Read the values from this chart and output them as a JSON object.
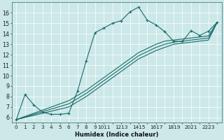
{
  "xlabel": "Humidex (Indice chaleur)",
  "bg_color": "#cce8e8",
  "line_color": "#1a6b6b",
  "xlim": [
    -0.5,
    23.5
  ],
  "ylim": [
    5.5,
    17.0
  ],
  "yticks": [
    6,
    7,
    8,
    9,
    10,
    11,
    12,
    13,
    14,
    15,
    16
  ],
  "xticks": [
    0,
    1,
    2,
    3,
    4,
    5,
    6,
    7,
    8,
    9,
    10,
    11,
    12,
    13,
    14,
    15,
    16,
    17,
    18,
    19,
    20,
    21,
    22,
    23
  ],
  "xtick_labels": [
    "0",
    "1",
    "2",
    "3",
    "4",
    "5",
    "6",
    "7",
    "8",
    "9",
    "1011",
    "",
    "12",
    "13",
    "14",
    "15",
    "16",
    "17",
    "18",
    "19",
    "20",
    "21",
    "2223",
    ""
  ],
  "lines": [
    {
      "x": [
        0,
        1,
        2,
        3,
        4,
        5,
        6,
        7,
        8,
        9,
        10,
        11,
        12,
        13,
        14,
        15,
        16,
        17,
        18,
        19,
        20,
        21,
        22,
        23
      ],
      "y": [
        5.8,
        8.2,
        7.2,
        6.5,
        6.3,
        6.3,
        6.4,
        8.5,
        11.4,
        14.1,
        14.55,
        15.0,
        15.25,
        16.1,
        16.55,
        15.3,
        14.85,
        14.2,
        13.3,
        13.25,
        14.3,
        13.85,
        14.25,
        15.1
      ],
      "marker": true
    },
    {
      "x": [
        0,
        1,
        2,
        3,
        4,
        5,
        6,
        7,
        8,
        9,
        10,
        11,
        12,
        13,
        14,
        15,
        16,
        17,
        18,
        19,
        20,
        21,
        22,
        23
      ],
      "y": [
        5.8,
        6.0,
        6.2,
        6.4,
        6.6,
        6.8,
        7.0,
        7.5,
        8.0,
        8.6,
        9.2,
        9.8,
        10.4,
        11.0,
        11.6,
        12.0,
        12.4,
        12.7,
        13.0,
        13.1,
        13.2,
        13.3,
        13.4,
        15.1
      ],
      "marker": false
    },
    {
      "x": [
        0,
        1,
        2,
        3,
        4,
        5,
        6,
        7,
        8,
        9,
        10,
        11,
        12,
        13,
        14,
        15,
        16,
        17,
        18,
        19,
        20,
        21,
        22,
        23
      ],
      "y": [
        5.8,
        6.05,
        6.3,
        6.55,
        6.8,
        7.05,
        7.3,
        7.8,
        8.3,
        8.9,
        9.5,
        10.1,
        10.7,
        11.3,
        11.9,
        12.3,
        12.7,
        13.0,
        13.2,
        13.3,
        13.4,
        13.5,
        13.6,
        15.1
      ],
      "marker": false
    },
    {
      "x": [
        0,
        1,
        2,
        3,
        4,
        5,
        6,
        7,
        8,
        9,
        10,
        11,
        12,
        13,
        14,
        15,
        16,
        17,
        18,
        19,
        20,
        21,
        22,
        23
      ],
      "y": [
        5.8,
        6.1,
        6.4,
        6.7,
        7.0,
        7.3,
        7.6,
        8.1,
        8.6,
        9.2,
        9.8,
        10.4,
        11.0,
        11.6,
        12.2,
        12.6,
        13.0,
        13.3,
        13.4,
        13.5,
        13.6,
        13.7,
        13.8,
        15.1
      ],
      "marker": false
    }
  ]
}
